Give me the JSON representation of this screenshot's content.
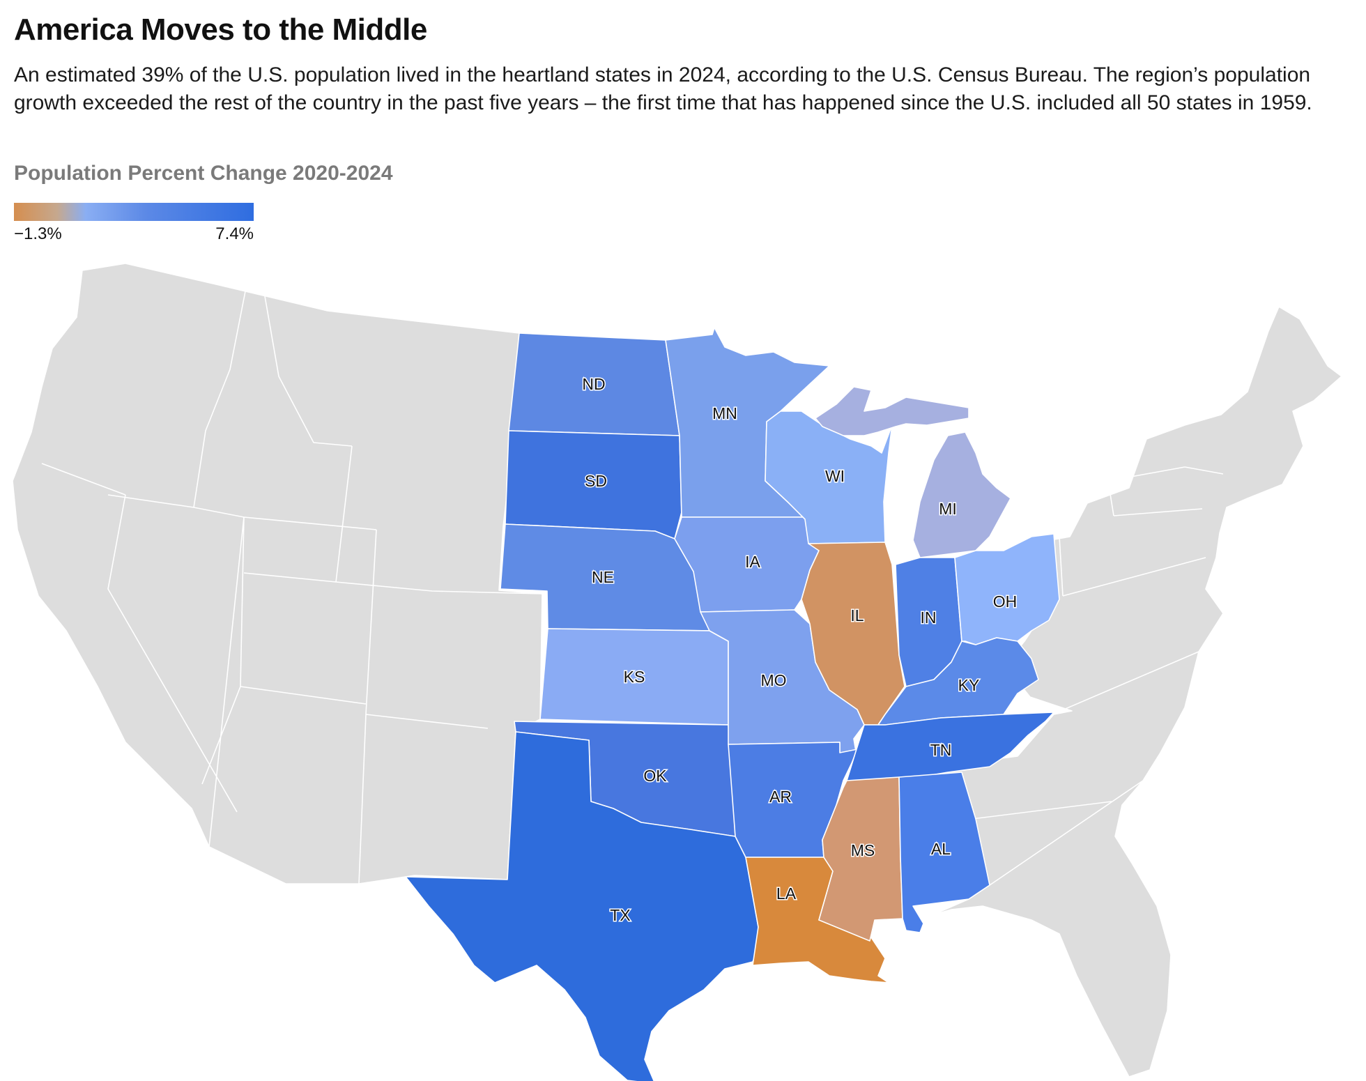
{
  "header": {
    "title": "America Moves to the Middle",
    "subtitle": "An estimated 39% of the U.S. population lived in the heartland states in 2024, according to the U.S. Census Bureau. The region’s population growth exceeded the rest of the country in the past five years – the first time that has happened since the U.S. included all 50 states in 1959."
  },
  "legend": {
    "title": "Population Percent Change 2020-2024",
    "min_label": "−1.3%",
    "max_label": "7.4%",
    "colors": [
      "#d58e4f",
      "#c6a88e",
      "#8aaef3",
      "#5c89e6",
      "#2f6de0"
    ]
  },
  "map": {
    "background_color": "#dddddd",
    "states": [
      {
        "id": "ND",
        "label": "ND",
        "color": "#5d88e3"
      },
      {
        "id": "SD",
        "label": "SD",
        "color": "#3f73de"
      },
      {
        "id": "NE",
        "label": "NE",
        "color": "#5f8be5"
      },
      {
        "id": "KS",
        "label": "KS",
        "color": "#8aabf4"
      },
      {
        "id": "OK",
        "label": "OK",
        "color": "#4877df"
      },
      {
        "id": "TX",
        "label": "TX",
        "color": "#2e6cdc"
      },
      {
        "id": "MN",
        "label": "MN",
        "color": "#7aa0ec"
      },
      {
        "id": "IA",
        "label": "IA",
        "color": "#7c9fee"
      },
      {
        "id": "MO",
        "label": "MO",
        "color": "#7ea1ee"
      },
      {
        "id": "AR",
        "label": "AR",
        "color": "#4c7de4"
      },
      {
        "id": "LA",
        "label": "LA",
        "color": "#d8893c"
      },
      {
        "id": "WI",
        "label": "WI",
        "color": "#8ab0f6"
      },
      {
        "id": "IL",
        "label": "IL",
        "color": "#d19363"
      },
      {
        "id": "MI",
        "label": "MI",
        "color": "#a6b0e0"
      },
      {
        "id": "IN",
        "label": "IN",
        "color": "#4f80e5"
      },
      {
        "id": "OH",
        "label": "OH",
        "color": "#8fb4fb"
      },
      {
        "id": "KY",
        "label": "KY",
        "color": "#5b8ae8"
      },
      {
        "id": "TN",
        "label": "TN",
        "color": "#3a72e0"
      },
      {
        "id": "MS",
        "label": "MS",
        "color": "#d29873"
      },
      {
        "id": "AL",
        "label": "AL",
        "color": "#4a7ee8"
      }
    ]
  }
}
